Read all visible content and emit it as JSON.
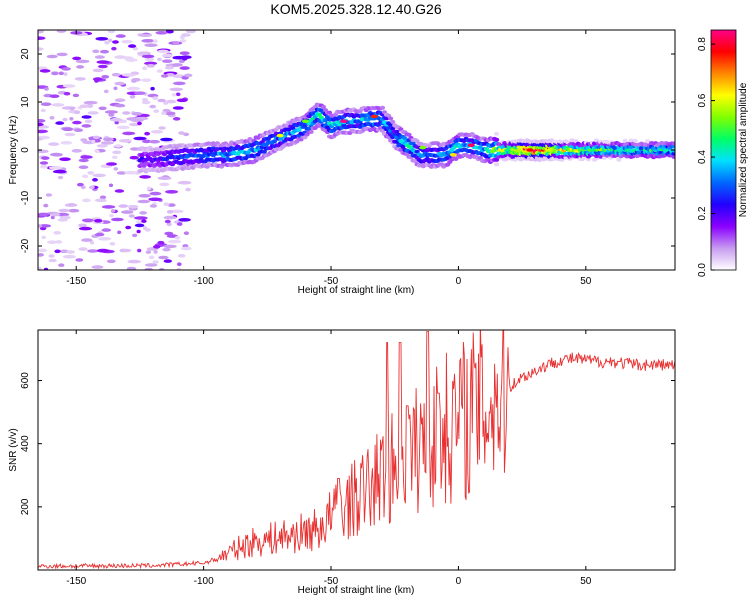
{
  "title": "KOM5.2025.328.12.40.G26",
  "chart_data": [
    {
      "type": "heatmap",
      "name": "spectrogram",
      "xlabel": "Height of straight line (km)",
      "ylabel": "Frequency (Hz)",
      "xlim": [
        -165,
        85
      ],
      "ylim": [
        -25,
        25
      ],
      "xticks": [
        -150,
        -100,
        -50,
        0,
        50
      ],
      "yticks": [
        -20,
        -10,
        0,
        10,
        20
      ],
      "colorbar": {
        "label": "Normalized spectral amplitude",
        "range": [
          0,
          0.85
        ],
        "ticks": [
          0.0,
          0.2,
          0.4,
          0.6,
          0.8
        ],
        "colors": [
          "#ffffff",
          "#c89bf0",
          "#8a00ff",
          "#2200ff",
          "#0066ff",
          "#00e0ff",
          "#00ff66",
          "#80ff00",
          "#ffff00",
          "#ff8800",
          "#ff0000",
          "#ff0088"
        ]
      },
      "ridge": {
        "height_km": [
          -120,
          -110,
          -100,
          -90,
          -80,
          -70,
          -60,
          -55,
          -50,
          -45,
          -40,
          -35,
          -30,
          -25,
          -20,
          -15,
          -10,
          -5,
          0,
          5,
          10,
          15,
          20,
          30,
          40,
          50,
          60,
          70,
          85
        ],
        "frequency_hz": [
          -2,
          -1.5,
          -1,
          -1,
          0,
          2.5,
          5,
          7.5,
          5,
          6,
          6,
          6.5,
          6.5,
          3,
          1,
          -1,
          -1,
          -1,
          1,
          1,
          0,
          0,
          0,
          0,
          0,
          0,
          0,
          0,
          0
        ],
        "amplitude": [
          0.2,
          0.25,
          0.3,
          0.35,
          0.35,
          0.3,
          0.35,
          0.4,
          0.35,
          0.35,
          0.3,
          0.4,
          0.35,
          0.3,
          0.4,
          0.3,
          0.3,
          0.35,
          0.4,
          0.35,
          0.35,
          0.5,
          0.6,
          0.85,
          0.6,
          0.5,
          0.45,
          0.45,
          0.4
        ]
      }
    },
    {
      "type": "line",
      "name": "snr",
      "xlabel": "Height of straight line (km)",
      "ylabel": "SNR (v/v)",
      "xlim": [
        -165,
        85
      ],
      "ylim": [
        0,
        760
      ],
      "xticks": [
        -150,
        -100,
        -50,
        0,
        50
      ],
      "yticks": [
        200,
        400,
        600
      ],
      "color": "#e83030",
      "envelope": {
        "x": [
          -165,
          -120,
          -100,
          -95,
          -90,
          -85,
          -80,
          -75,
          -70,
          -65,
          -60,
          -55,
          -50,
          -45,
          -40,
          -35,
          -30,
          -25,
          -20,
          -15,
          -10,
          -5,
          0,
          5,
          10,
          15,
          20,
          25,
          30,
          35,
          40,
          45,
          50,
          55,
          60,
          65,
          70,
          75,
          80,
          85
        ],
        "y": [
          12,
          14,
          22,
          35,
          55,
          75,
          90,
          95,
          105,
          110,
          120,
          130,
          170,
          200,
          230,
          260,
          300,
          330,
          360,
          390,
          420,
          450,
          470,
          500,
          520,
          550,
          580,
          610,
          630,
          650,
          665,
          670,
          665,
          660,
          660,
          655,
          650,
          650,
          650,
          648
        ]
      },
      "spikes": [
        {
          "x": -28,
          "y": 720
        },
        {
          "x": -23,
          "y": 720
        },
        {
          "x": -12,
          "y": 755
        },
        {
          "x": -47,
          "y": 290
        },
        {
          "x": -20,
          "y": 520
        },
        {
          "x": -8,
          "y": 560
        }
      ]
    }
  ]
}
